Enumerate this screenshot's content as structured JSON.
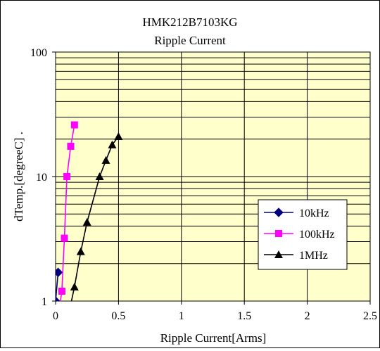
{
  "chart_data": {
    "type": "line",
    "title": "HMK212B7103KG",
    "subtitle": "Ripple Current",
    "xlabel": "Ripple Current[Arms]",
    "ylabel": "dTemp.[degreeC] .",
    "xlim": [
      0,
      2.5
    ],
    "ylim": [
      1,
      100
    ],
    "yscale": "log",
    "x_ticks": [
      "0",
      "0.5",
      "1",
      "1.5",
      "2",
      "2.5"
    ],
    "y_ticks": [
      "1",
      "10",
      "100"
    ],
    "grid": true,
    "plot_background": "#ffffcc",
    "legend_position": "right",
    "series": [
      {
        "name": "10kHz",
        "color": "#000080",
        "marker": "diamond",
        "x": [
          0.0,
          0.02
        ],
        "y": [
          1.0,
          1.7
        ]
      },
      {
        "name": "100kHz",
        "color": "#ff00ff",
        "marker": "square",
        "x": [
          0.02,
          0.05,
          0.07,
          0.09,
          0.12,
          0.15
        ],
        "y": [
          0.75,
          1.2,
          3.2,
          10.0,
          17.5,
          26.0
        ]
      },
      {
        "name": "1MHz",
        "color": "#000000",
        "marker": "triangle",
        "x": [
          0.1,
          0.15,
          0.2,
          0.25,
          0.35,
          0.4,
          0.45,
          0.5
        ],
        "y": [
          0.75,
          1.3,
          2.5,
          4.3,
          10.0,
          13.5,
          18.0,
          21.0
        ]
      }
    ]
  }
}
